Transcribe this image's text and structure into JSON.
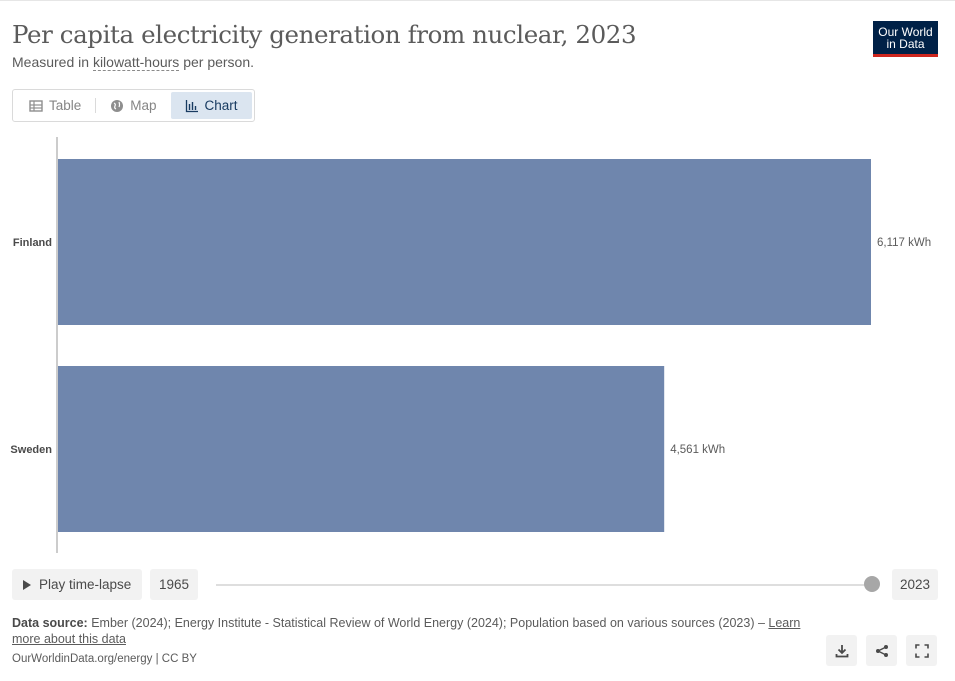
{
  "header": {
    "title": "Per capita electricity generation from nuclear, 2023",
    "subtitle_prefix": "Measured in ",
    "subtitle_link": "kilowatt-hours",
    "subtitle_suffix": " per person.",
    "logo_line1": "Our World",
    "logo_line2": "in Data"
  },
  "tabs": [
    {
      "label": "Table",
      "icon": "table-icon"
    },
    {
      "label": "Map",
      "icon": "globe-icon"
    },
    {
      "label": "Chart",
      "icon": "chart-icon",
      "active": true
    }
  ],
  "chart_data": {
    "type": "bar",
    "orientation": "horizontal",
    "categories": [
      "Finland",
      "Sweden"
    ],
    "values": [
      6117,
      4561
    ],
    "value_labels": [
      "6,117 kWh",
      "4,561 kWh"
    ],
    "unit": "kWh",
    "bar_color": "#6f86ad",
    "xlim": [
      0,
      6117
    ],
    "grid": false
  },
  "timeline": {
    "play_label": "Play time-lapse",
    "start_year": "1965",
    "end_year": "2023"
  },
  "source": {
    "label": "Data source:",
    "text": " Ember (2024); Energy Institute - Statistical Review of World Energy (2024); Population based on various sources (2023) – ",
    "link": "Learn more about this data"
  },
  "footer": {
    "url": "OurWorldinData.org/energy | CC BY"
  },
  "actions": [
    {
      "name": "download-icon"
    },
    {
      "name": "share-icon"
    },
    {
      "name": "fullscreen-icon"
    }
  ]
}
